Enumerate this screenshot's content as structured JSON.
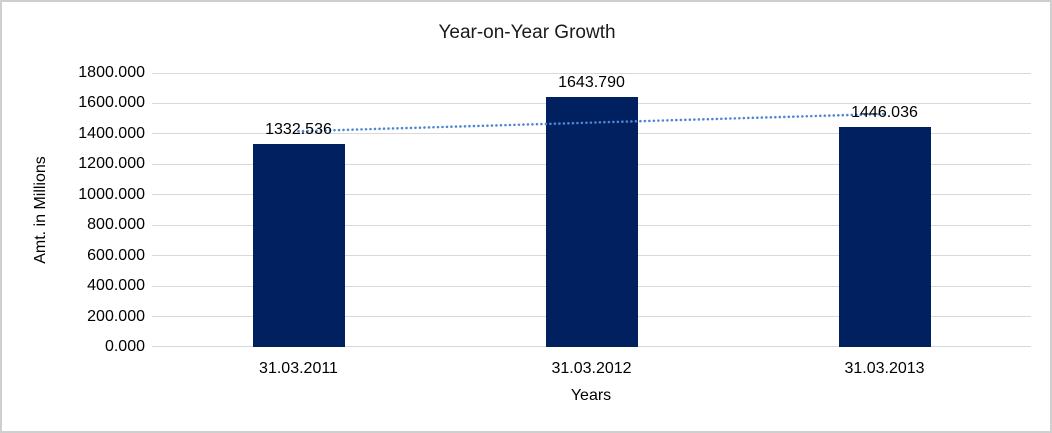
{
  "window": {
    "background": "#ffffff",
    "border_color": "#cfcfcf"
  },
  "chart_data": {
    "type": "bar",
    "title": "Year-on-Year Growth",
    "xlabel": "Years",
    "ylabel": "Amt. in Millions",
    "categories": [
      "31.03.2011",
      "31.03.2012",
      "31.03.2013"
    ],
    "values": [
      1332.536,
      1643.79,
      1446.036
    ],
    "data_labels": [
      "1332.536",
      "1643.790",
      "1446.036"
    ],
    "ylim": [
      0,
      1800
    ],
    "ytick_step": 200,
    "ytick_labels": [
      "0.000",
      "200.000",
      "400.000",
      "600.000",
      "800.000",
      "1000.000",
      "1200.000",
      "1400.000",
      "1600.000",
      "1800.000"
    ],
    "grid": true,
    "legend": "none",
    "colors": {
      "bar": "#002060",
      "gridline": "#d9d9d9",
      "trendline": "#4e86d4",
      "text": "#000000"
    },
    "trendline": {
      "type": "linear",
      "style": "dotted",
      "start_value": 1417.4,
      "end_value": 1530.9
    }
  }
}
